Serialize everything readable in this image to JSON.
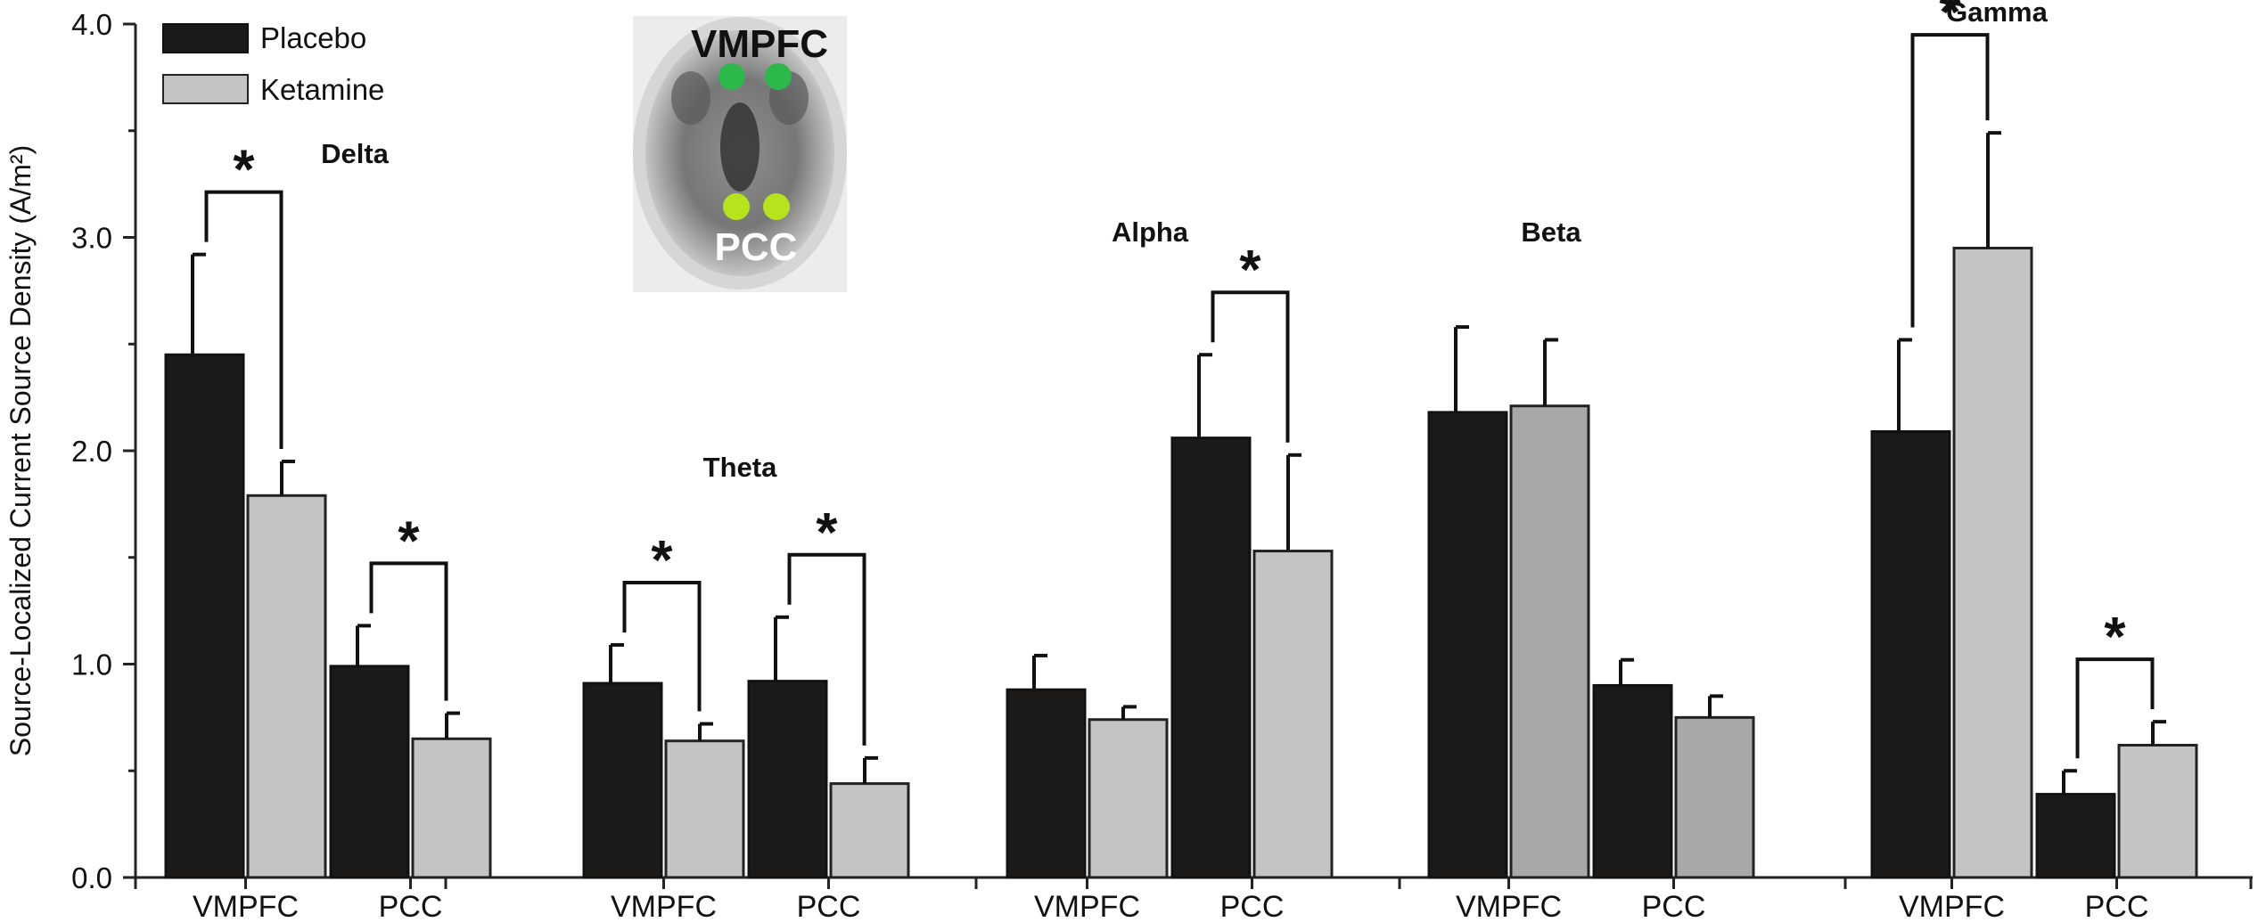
{
  "chart_data": {
    "type": "bar",
    "ylabel": "Source-Localized Current Source Density (A/m²)",
    "ylim": [
      0,
      4
    ],
    "yticks": [
      "0.0",
      "1.0",
      "2.0",
      "3.0",
      "4.0"
    ],
    "legend": [
      {
        "name": "Placebo",
        "color": "#1c1a19"
      },
      {
        "name": "Ketamine",
        "color": "#c4c4c4"
      }
    ],
    "inset": {
      "top_label": "VMPFC",
      "bottom_label": "PCC"
    },
    "groups": [
      {
        "band": "Delta",
        "items": [
          {
            "region": "VMPFC",
            "placebo": 2.45,
            "placebo_err": 0.47,
            "ketamine": 1.79,
            "ketamine_err": 0.16,
            "significant": true
          },
          {
            "region": "PCC",
            "placebo": 0.99,
            "placebo_err": 0.19,
            "ketamine": 0.65,
            "ketamine_err": 0.12,
            "significant": true
          }
        ]
      },
      {
        "band": "Theta",
        "items": [
          {
            "region": "VMPFC",
            "placebo": 0.91,
            "placebo_err": 0.18,
            "ketamine": 0.64,
            "ketamine_err": 0.08,
            "significant": true
          },
          {
            "region": "PCC",
            "placebo": 0.92,
            "placebo_err": 0.3,
            "ketamine": 0.44,
            "ketamine_err": 0.12,
            "significant": true
          }
        ]
      },
      {
        "band": "Alpha",
        "items": [
          {
            "region": "VMPFC",
            "placebo": 0.88,
            "placebo_err": 0.16,
            "ketamine": 0.74,
            "ketamine_err": 0.06,
            "significant": false
          },
          {
            "region": "PCC",
            "placebo": 2.06,
            "placebo_err": 0.39,
            "ketamine": 1.53,
            "ketamine_err": 0.45,
            "significant": true
          }
        ]
      },
      {
        "band": "Beta",
        "items": [
          {
            "region": "VMPFC",
            "placebo": 2.18,
            "placebo_err": 0.4,
            "ketamine": 2.21,
            "ketamine_err": 0.31,
            "significant": false
          },
          {
            "region": "PCC",
            "placebo": 0.9,
            "placebo_err": 0.12,
            "ketamine": 0.75,
            "ketamine_err": 0.1,
            "significant": false
          }
        ]
      },
      {
        "band": "Gamma",
        "items": [
          {
            "region": "VMPFC",
            "placebo": 2.09,
            "placebo_err": 0.43,
            "ketamine": 2.95,
            "ketamine_err": 0.54,
            "significant": true
          },
          {
            "region": "PCC",
            "placebo": 0.39,
            "placebo_err": 0.11,
            "ketamine": 0.62,
            "ketamine_err": 0.11,
            "significant": true
          }
        ]
      }
    ]
  }
}
